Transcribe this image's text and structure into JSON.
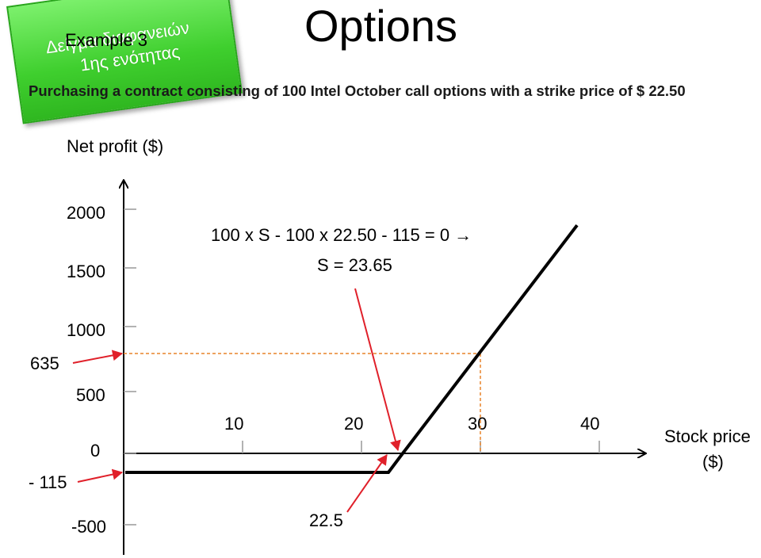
{
  "slide": {
    "title": "Options",
    "subtitle": "Purchasing a contract consisting of 100 Intel October call options with a strike price of $ 22.50",
    "badge": {
      "label": "Example 3",
      "watermark_line1": "Δείγμα διαφανειών",
      "watermark_line2": "1ης ενότητας",
      "color": "#3fcf2e"
    }
  },
  "chart_data": {
    "type": "line",
    "title": "",
    "ylabel": "Net profit ($)",
    "xlabel_line1": "Stock price",
    "xlabel_line2": "($)",
    "x_ticks": [
      10,
      20,
      30,
      40
    ],
    "x_tick_labels": [
      "10",
      "20",
      "30",
      "40"
    ],
    "y_ticks": [
      2000,
      1500,
      1000,
      500,
      0,
      -500
    ],
    "y_tick_labels": [
      "2000",
      "1500",
      "1000",
      "500",
      "0",
      "-500"
    ],
    "xlim": [
      0,
      45
    ],
    "ylim": [
      -500,
      2000
    ],
    "series": [
      {
        "x": [
          0,
          22.5,
          23.65,
          40
        ],
        "y": [
          -115,
          -115,
          0,
          1635
        ],
        "color": "#000000"
      }
    ],
    "annotations": {
      "equation": "100 x S - 100 x 22.50 - 115 = 0 →",
      "solution": "S = 23.65",
      "y_marker_635": "635",
      "y_marker_minus115": "- 115",
      "x_marker_strike": "22.5"
    },
    "reference_point": {
      "x": 30,
      "y": 635,
      "color": "#e8832a"
    },
    "arrow_color": "#e0202a",
    "grid": false
  }
}
